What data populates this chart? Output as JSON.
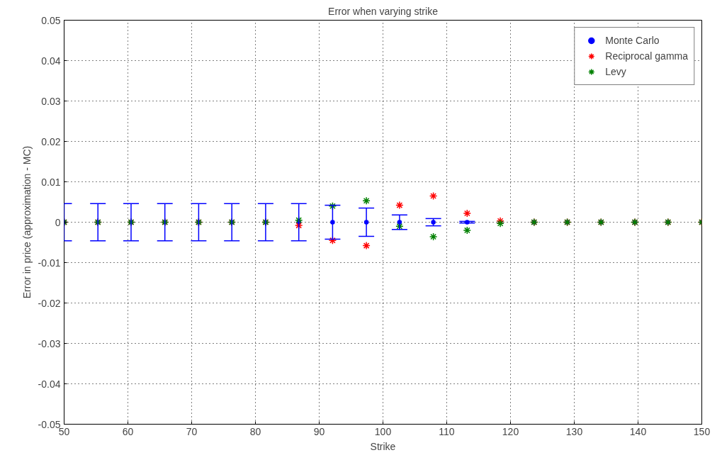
{
  "chart_data": {
    "type": "scatter",
    "title": "Error when varying strike",
    "xlabel": "Strike",
    "ylabel": "Error in price (approximation - MC)",
    "x": [
      50,
      55.3,
      60.5,
      65.8,
      71.1,
      76.3,
      81.6,
      86.8,
      92.1,
      97.4,
      102.6,
      107.9,
      113.2,
      118.4,
      123.7,
      128.9,
      134.2,
      139.5,
      144.7,
      150
    ],
    "series": [
      {
        "name": "Monte Carlo",
        "color": "#0000ff",
        "marker": "circle",
        "values": [
          0,
          0,
          0,
          0,
          0,
          0,
          0,
          0,
          0,
          0,
          0,
          0,
          0,
          0,
          0,
          0,
          0,
          0,
          0,
          0
        ],
        "errors": [
          0.0046,
          0.0046,
          0.0046,
          0.0046,
          0.0046,
          0.0046,
          0.0046,
          0.0046,
          0.0042,
          0.0035,
          0.0018,
          0.0009,
          0.0002,
          null,
          null,
          null,
          null,
          null,
          null,
          null
        ]
      },
      {
        "name": "Reciprocal gamma",
        "color": "#ff0000",
        "marker": "cross",
        "values": [
          0,
          0,
          0,
          0,
          0,
          0,
          0,
          -0.0008,
          -0.0045,
          -0.0058,
          0.0042,
          0.0065,
          0.0022,
          0.0003,
          0,
          0,
          0,
          0,
          0,
          0
        ]
      },
      {
        "name": "Levy",
        "color": "#008000",
        "marker": "cross",
        "values": [
          0,
          0,
          0,
          0,
          0,
          0,
          0,
          0.0005,
          0.004,
          0.0053,
          -0.001,
          -0.0036,
          -0.002,
          -0.0003,
          0,
          0,
          0,
          0,
          0,
          0
        ]
      }
    ],
    "xlim": [
      50,
      150
    ],
    "ylim": [
      -0.05,
      0.05
    ],
    "xticks": [
      50,
      60,
      70,
      80,
      90,
      100,
      110,
      120,
      130,
      140,
      150
    ],
    "yticks": [
      -0.05,
      -0.04,
      -0.03,
      -0.02,
      -0.01,
      0,
      0.01,
      0.02,
      0.03,
      0.04,
      0.05
    ],
    "grid": true,
    "legend": "top right"
  }
}
